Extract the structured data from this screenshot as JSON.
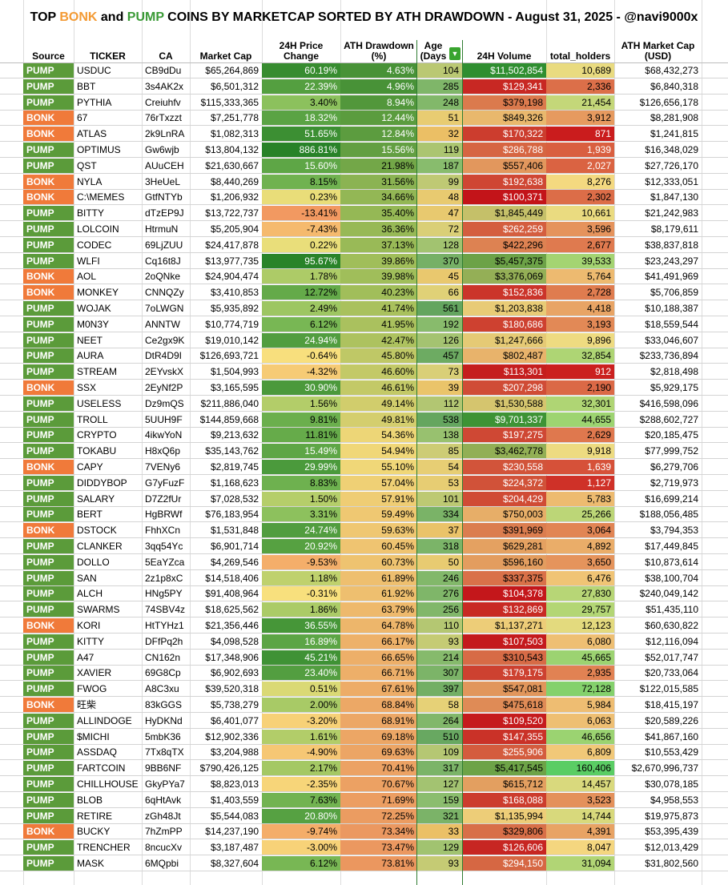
{
  "title": {
    "prefix": "TOP ",
    "bonk": "BONK",
    "middle": " and ",
    "pump": "PUMP",
    "suffix": " COINS BY MARKETCAP SORTED BY ATH DRAWDOWN - August 31, 2025 - @navi9000x"
  },
  "headers": {
    "source": "Source",
    "ticker": "TICKER",
    "ca": "CA",
    "market_cap": "Market Cap",
    "price_change": "24H Price Change",
    "ath_drawdown": "ATH Drawdown (%)",
    "age": "Age (Days",
    "volume": "24H Volume",
    "holders": "total_holders",
    "ath_mcap": "ATH Market Cap (USD)"
  },
  "filter_icon": "funnel-filter-icon",
  "colors": {
    "pump_source": "#5b9b3a",
    "bonk_source": "#f07a3a",
    "title_bonk": "#f39a34",
    "title_pump": "#3a9a36",
    "good": "#63be7b",
    "neutral": "#f8e27e",
    "bad": "#c0161e"
  },
  "rows": [
    {
      "source": "PUMP",
      "ticker": "USDUC",
      "ca": "CB9dDu",
      "market_cap": "$65,264,869",
      "price_change": "60.19%",
      "ath_drawdown": "4.63%",
      "age": "104",
      "volume": "$11,502,854",
      "holders": "10,689",
      "ath_mcap": "$68,432,273"
    },
    {
      "source": "PUMP",
      "ticker": "BBT",
      "ca": "3s4AK2x",
      "market_cap": "$6,501,312",
      "price_change": "22.39%",
      "ath_drawdown": "4.96%",
      "age": "285",
      "volume": "$129,341",
      "holders": "2,336",
      "ath_mcap": "$6,840,318"
    },
    {
      "source": "PUMP",
      "ticker": "PYTHIA",
      "ca": "Creiuhfv",
      "market_cap": "$115,333,365",
      "price_change": "3.40%",
      "ath_drawdown": "8.94%",
      "age": "248",
      "volume": "$379,198",
      "holders": "21,454",
      "ath_mcap": "$126,656,178"
    },
    {
      "source": "BONK",
      "ticker": "67",
      "ca": "76rTxzzt",
      "market_cap": "$7,251,778",
      "price_change": "18.32%",
      "ath_drawdown": "12.44%",
      "age": "51",
      "volume": "$849,326",
      "holders": "3,912",
      "ath_mcap": "$8,281,908"
    },
    {
      "source": "BONK",
      "ticker": "ATLAS",
      "ca": "2k9LnRA",
      "market_cap": "$1,082,313",
      "price_change": "51.65%",
      "ath_drawdown": "12.84%",
      "age": "32",
      "volume": "$170,322",
      "holders": "871",
      "ath_mcap": "$1,241,815"
    },
    {
      "source": "PUMP",
      "ticker": "OPTIMUS",
      "ca": "Gw6wjb",
      "market_cap": "$13,804,132",
      "price_change": "886.81%",
      "ath_drawdown": "15.56%",
      "age": "119",
      "volume": "$286,788",
      "holders": "1,939",
      "ath_mcap": "$16,348,029"
    },
    {
      "source": "PUMP",
      "ticker": "QST",
      "ca": "AUuCEH",
      "market_cap": "$21,630,667",
      "price_change": "15.60%",
      "ath_drawdown": "21.98%",
      "age": "187",
      "volume": "$557,406",
      "holders": "2,027",
      "ath_mcap": "$27,726,170"
    },
    {
      "source": "BONK",
      "ticker": "NYLA",
      "ca": "3HeUeL",
      "market_cap": "$8,440,269",
      "price_change": "8.15%",
      "ath_drawdown": "31.56%",
      "age": "99",
      "volume": "$192,638",
      "holders": "8,276",
      "ath_mcap": "$12,333,051"
    },
    {
      "source": "BONK",
      "ticker": "C:\\MEMES",
      "ca": "GtfNTYb",
      "market_cap": "$1,206,932",
      "price_change": "0.23%",
      "ath_drawdown": "34.66%",
      "age": "48",
      "volume": "$100,371",
      "holders": "2,302",
      "ath_mcap": "$1,847,130"
    },
    {
      "source": "PUMP",
      "ticker": "BITTY",
      "ca": "dTzEP9J",
      "market_cap": "$13,722,737",
      "price_change": "-13.41%",
      "ath_drawdown": "35.40%",
      "age": "47",
      "volume": "$1,845,449",
      "holders": "10,661",
      "ath_mcap": "$21,242,983"
    },
    {
      "source": "PUMP",
      "ticker": "LOLCOIN",
      "ca": "HtrmuN",
      "market_cap": "$5,205,904",
      "price_change": "-7.43%",
      "ath_drawdown": "36.36%",
      "age": "72",
      "volume": "$262,259",
      "holders": "3,596",
      "ath_mcap": "$8,179,611"
    },
    {
      "source": "PUMP",
      "ticker": "CODEC",
      "ca": "69LjZUU",
      "market_cap": "$24,417,878",
      "price_change": "0.22%",
      "ath_drawdown": "37.13%",
      "age": "128",
      "volume": "$422,296",
      "holders": "2,677",
      "ath_mcap": "$38,837,818"
    },
    {
      "source": "PUMP",
      "ticker": "WLFI",
      "ca": "Cq16t8J",
      "market_cap": "$13,977,735",
      "price_change": "95.67%",
      "ath_drawdown": "39.86%",
      "age": "370",
      "volume": "$5,457,375",
      "holders": "39,533",
      "ath_mcap": "$23,243,297"
    },
    {
      "source": "BONK",
      "ticker": "AOL",
      "ca": "2oQNke",
      "market_cap": "$24,904,474",
      "price_change": "1.78%",
      "ath_drawdown": "39.98%",
      "age": "45",
      "volume": "$3,376,069",
      "holders": "5,764",
      "ath_mcap": "$41,491,969"
    },
    {
      "source": "BONK",
      "ticker": "MONKEY",
      "ca": "CNNQZy",
      "market_cap": "$3,410,853",
      "price_change": "12.72%",
      "ath_drawdown": "40.23%",
      "age": "66",
      "volume": "$152,836",
      "holders": "2,728",
      "ath_mcap": "$5,706,859"
    },
    {
      "source": "PUMP",
      "ticker": "WOJAK",
      "ca": "7oLWGN",
      "market_cap": "$5,935,892",
      "price_change": "2.49%",
      "ath_drawdown": "41.74%",
      "age": "561",
      "volume": "$1,203,838",
      "holders": "4,418",
      "ath_mcap": "$10,188,387"
    },
    {
      "source": "PUMP",
      "ticker": "M0N3Y",
      "ca": "ANNTW",
      "market_cap": "$10,774,719",
      "price_change": "6.12%",
      "ath_drawdown": "41.95%",
      "age": "192",
      "volume": "$180,686",
      "holders": "3,193",
      "ath_mcap": "$18,559,544"
    },
    {
      "source": "PUMP",
      "ticker": "NEET",
      "ca": "Ce2gx9K",
      "market_cap": "$19,010,142",
      "price_change": "24.94%",
      "ath_drawdown": "42.47%",
      "age": "126",
      "volume": "$1,247,666",
      "holders": "9,896",
      "ath_mcap": "$33,046,607"
    },
    {
      "source": "PUMP",
      "ticker": "AURA",
      "ca": "DtR4D9I",
      "market_cap": "$126,693,721",
      "price_change": "-0.64%",
      "ath_drawdown": "45.80%",
      "age": "457",
      "volume": "$802,487",
      "holders": "32,854",
      "ath_mcap": "$233,736,894"
    },
    {
      "source": "PUMP",
      "ticker": "STREAM",
      "ca": "2EYvskX",
      "market_cap": "$1,504,993",
      "price_change": "-4.32%",
      "ath_drawdown": "46.60%",
      "age": "73",
      "volume": "$113,301",
      "holders": "912",
      "ath_mcap": "$2,818,498"
    },
    {
      "source": "BONK",
      "ticker": "SSX",
      "ca": "2EyNf2P",
      "market_cap": "$3,165,595",
      "price_change": "30.90%",
      "ath_drawdown": "46.61%",
      "age": "39",
      "volume": "$207,298",
      "holders": "2,190",
      "ath_mcap": "$5,929,175"
    },
    {
      "source": "PUMP",
      "ticker": "USELESS",
      "ca": "Dz9mQS",
      "market_cap": "$211,886,040",
      "price_change": "1.56%",
      "ath_drawdown": "49.14%",
      "age": "112",
      "volume": "$1,530,588",
      "holders": "32,301",
      "ath_mcap": "$416,598,096"
    },
    {
      "source": "PUMP",
      "ticker": "TROLL",
      "ca": "5UUH9F",
      "market_cap": "$144,859,668",
      "price_change": "9.81%",
      "ath_drawdown": "49.81%",
      "age": "538",
      "volume": "$9,701,337",
      "holders": "44,655",
      "ath_mcap": "$288,602,727"
    },
    {
      "source": "PUMP",
      "ticker": "CRYPTO",
      "ca": "4ikwYoN",
      "market_cap": "$9,213,632",
      "price_change": "11.81%",
      "ath_drawdown": "54.36%",
      "age": "138",
      "volume": "$197,275",
      "holders": "2,629",
      "ath_mcap": "$20,185,475"
    },
    {
      "source": "PUMP",
      "ticker": "TOKABU",
      "ca": "H8xQ6p",
      "market_cap": "$35,143,762",
      "price_change": "15.49%",
      "ath_drawdown": "54.94%",
      "age": "85",
      "volume": "$3,462,778",
      "holders": "9,918",
      "ath_mcap": "$77,999,752"
    },
    {
      "source": "BONK",
      "ticker": "CAPY",
      "ca": "7VENy6",
      "market_cap": "$2,819,745",
      "price_change": "29.99%",
      "ath_drawdown": "55.10%",
      "age": "54",
      "volume": "$230,558",
      "holders": "1,639",
      "ath_mcap": "$6,279,706"
    },
    {
      "source": "PUMP",
      "ticker": "DIDDYBOP",
      "ca": "G7yFuzF",
      "market_cap": "$1,168,623",
      "price_change": "8.83%",
      "ath_drawdown": "57.04%",
      "age": "53",
      "volume": "$224,372",
      "holders": "1,127",
      "ath_mcap": "$2,719,973"
    },
    {
      "source": "PUMP",
      "ticker": "SALARY",
      "ca": "D7Z2fUr",
      "market_cap": "$7,028,532",
      "price_change": "1.50%",
      "ath_drawdown": "57.91%",
      "age": "101",
      "volume": "$204,429",
      "holders": "5,783",
      "ath_mcap": "$16,699,214"
    },
    {
      "source": "PUMP",
      "ticker": "BERT",
      "ca": "HgBRWf",
      "market_cap": "$76,183,954",
      "price_change": "3.31%",
      "ath_drawdown": "59.49%",
      "age": "334",
      "volume": "$750,003",
      "holders": "25,266",
      "ath_mcap": "$188,056,485"
    },
    {
      "source": "BONK",
      "ticker": "DSTOCK",
      "ca": "FhhXCn",
      "market_cap": "$1,531,848",
      "price_change": "24.74%",
      "ath_drawdown": "59.63%",
      "age": "37",
      "volume": "$391,969",
      "holders": "3,064",
      "ath_mcap": "$3,794,353"
    },
    {
      "source": "PUMP",
      "ticker": "CLANKER",
      "ca": "3qq54Yc",
      "market_cap": "$6,901,714",
      "price_change": "20.92%",
      "ath_drawdown": "60.45%",
      "age": "318",
      "volume": "$629,281",
      "holders": "4,892",
      "ath_mcap": "$17,449,845"
    },
    {
      "source": "PUMP",
      "ticker": "DOLLO",
      "ca": "5EaYZca",
      "market_cap": "$4,269,546",
      "price_change": "-9.53%",
      "ath_drawdown": "60.73%",
      "age": "50",
      "volume": "$596,160",
      "holders": "3,650",
      "ath_mcap": "$10,873,614"
    },
    {
      "source": "PUMP",
      "ticker": "SAN",
      "ca": "2z1p8xC",
      "market_cap": "$14,518,406",
      "price_change": "1.18%",
      "ath_drawdown": "61.89%",
      "age": "246",
      "volume": "$337,375",
      "holders": "6,476",
      "ath_mcap": "$38,100,704"
    },
    {
      "source": "PUMP",
      "ticker": "ALCH",
      "ca": "HNg5PY",
      "market_cap": "$91,408,964",
      "price_change": "-0.31%",
      "ath_drawdown": "61.92%",
      "age": "276",
      "volume": "$104,378",
      "holders": "27,830",
      "ath_mcap": "$240,049,142"
    },
    {
      "source": "PUMP",
      "ticker": "SWARMS",
      "ca": "74SBV4z",
      "market_cap": "$18,625,562",
      "price_change": "1.86%",
      "ath_drawdown": "63.79%",
      "age": "256",
      "volume": "$132,869",
      "holders": "29,757",
      "ath_mcap": "$51,435,110"
    },
    {
      "source": "BONK",
      "ticker": "KORI",
      "ca": "HtTYHz1",
      "market_cap": "$21,356,446",
      "price_change": "36.55%",
      "ath_drawdown": "64.78%",
      "age": "110",
      "volume": "$1,137,271",
      "holders": "12,123",
      "ath_mcap": "$60,630,822"
    },
    {
      "source": "PUMP",
      "ticker": "KITTY",
      "ca": "DFfPq2h",
      "market_cap": "$4,098,528",
      "price_change": "16.89%",
      "ath_drawdown": "66.17%",
      "age": "93",
      "volume": "$107,503",
      "holders": "6,080",
      "ath_mcap": "$12,116,094"
    },
    {
      "source": "PUMP",
      "ticker": "A47",
      "ca": "CN162n",
      "market_cap": "$17,348,906",
      "price_change": "45.21%",
      "ath_drawdown": "66.65%",
      "age": "214",
      "volume": "$310,543",
      "holders": "45,665",
      "ath_mcap": "$52,017,747"
    },
    {
      "source": "PUMP",
      "ticker": "XAVIER",
      "ca": "69G8Cp",
      "market_cap": "$6,902,693",
      "price_change": "23.40%",
      "ath_drawdown": "66.71%",
      "age": "307",
      "volume": "$179,175",
      "holders": "2,935",
      "ath_mcap": "$20,733,064"
    },
    {
      "source": "PUMP",
      "ticker": "FWOG",
      "ca": "A8C3xu",
      "market_cap": "$39,520,318",
      "price_change": "0.51%",
      "ath_drawdown": "67.61%",
      "age": "397",
      "volume": "$547,081",
      "holders": "72,128",
      "ath_mcap": "$122,015,585"
    },
    {
      "source": "BONK",
      "ticker": "旺柴",
      "ca": "83kGGS",
      "market_cap": "$5,738,279",
      "price_change": "2.00%",
      "ath_drawdown": "68.84%",
      "age": "58",
      "volume": "$475,618",
      "holders": "5,984",
      "ath_mcap": "$18,415,197"
    },
    {
      "source": "PUMP",
      "ticker": "ALLINDOGE",
      "ca": "HyDKNd",
      "market_cap": "$6,401,077",
      "price_change": "-3.20%",
      "ath_drawdown": "68.91%",
      "age": "264",
      "volume": "$109,520",
      "holders": "6,063",
      "ath_mcap": "$20,589,226"
    },
    {
      "source": "PUMP",
      "ticker": "$MICHI",
      "ca": "5mbK36",
      "market_cap": "$12,902,336",
      "price_change": "1.61%",
      "ath_drawdown": "69.18%",
      "age": "510",
      "volume": "$147,355",
      "holders": "46,656",
      "ath_mcap": "$41,867,160"
    },
    {
      "source": "PUMP",
      "ticker": "ASSDAQ",
      "ca": "7Tx8qTX",
      "market_cap": "$3,204,988",
      "price_change": "-4.90%",
      "ath_drawdown": "69.63%",
      "age": "109",
      "volume": "$255,906",
      "holders": "6,809",
      "ath_mcap": "$10,553,429"
    },
    {
      "source": "PUMP",
      "ticker": "FARTCOIN",
      "ca": "9BB6NF",
      "market_cap": "$790,426,125",
      "price_change": "2.17%",
      "ath_drawdown": "70.41%",
      "age": "317",
      "volume": "$5,417,545",
      "holders": "160,406",
      "ath_mcap": "$2,670,996,737"
    },
    {
      "source": "PUMP",
      "ticker": "CHILLHOUSE",
      "ca": "GkyPYa7",
      "market_cap": "$8,823,013",
      "price_change": "-2.35%",
      "ath_drawdown": "70.67%",
      "age": "127",
      "volume": "$615,712",
      "holders": "14,457",
      "ath_mcap": "$30,078,185"
    },
    {
      "source": "PUMP",
      "ticker": "BLOB",
      "ca": "6qHtAvk",
      "market_cap": "$1,403,559",
      "price_change": "7.63%",
      "ath_drawdown": "71.69%",
      "age": "159",
      "volume": "$168,088",
      "holders": "3,523",
      "ath_mcap": "$4,958,553"
    },
    {
      "source": "PUMP",
      "ticker": "RETIRE",
      "ca": "zGh48Jt",
      "market_cap": "$5,544,083",
      "price_change": "20.80%",
      "ath_drawdown": "72.25%",
      "age": "321",
      "volume": "$1,135,994",
      "holders": "14,744",
      "ath_mcap": "$19,975,873"
    },
    {
      "source": "BONK",
      "ticker": "BUCKY",
      "ca": "7hZmPP",
      "market_cap": "$14,237,190",
      "price_change": "-9.74%",
      "ath_drawdown": "73.34%",
      "age": "33",
      "volume": "$329,806",
      "holders": "4,391",
      "ath_mcap": "$53,395,439"
    },
    {
      "source": "PUMP",
      "ticker": "TRENCHER",
      "ca": "8ncucXv",
      "market_cap": "$3,187,487",
      "price_change": "-3.00%",
      "ath_drawdown": "73.47%",
      "age": "129",
      "volume": "$126,606",
      "holders": "8,047",
      "ath_mcap": "$12,013,429"
    },
    {
      "source": "PUMP",
      "ticker": "MASK",
      "ca": "6MQpbi",
      "market_cap": "$8,327,604",
      "price_change": "6.12%",
      "ath_drawdown": "73.81%",
      "age": "93",
      "volume": "$294,150",
      "holders": "31,094",
      "ath_mcap": "$31,802,560"
    }
  ]
}
